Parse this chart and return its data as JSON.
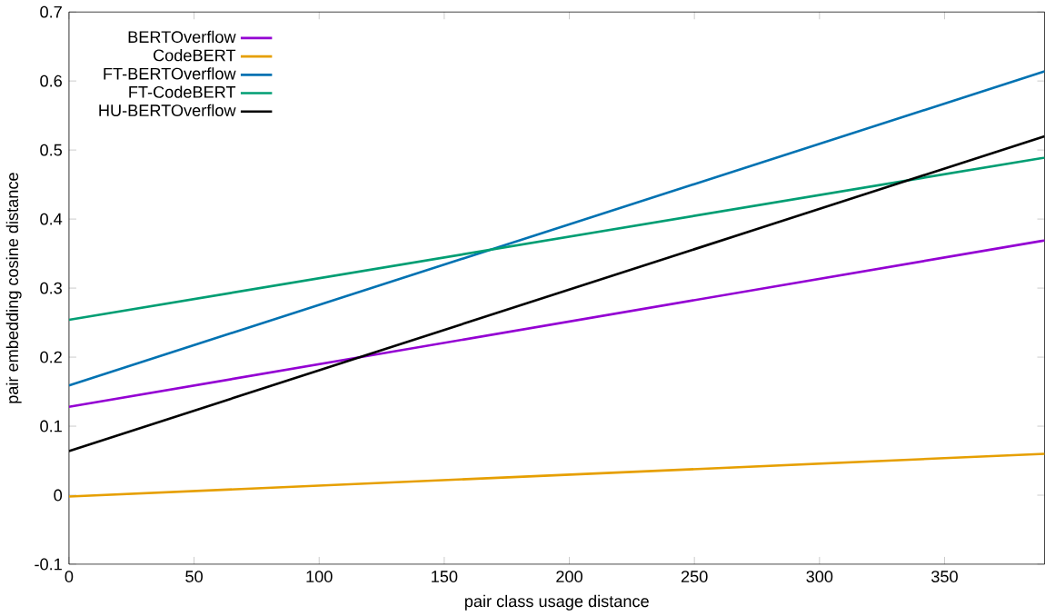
{
  "chart_data": {
    "type": "line",
    "xlabel": "pair class usage distance",
    "ylabel": "pair embedding cosine distance",
    "x": [
      0,
      390
    ],
    "series": [
      {
        "name": "BERTOverflow",
        "color": "#9400d3",
        "values": [
          0.128,
          0.369
        ]
      },
      {
        "name": "CodeBERT",
        "color": "#e69f00",
        "values": [
          -0.002,
          0.06
        ]
      },
      {
        "name": "FT-BERTOverflow",
        "color": "#0072b2",
        "values": [
          0.159,
          0.614
        ]
      },
      {
        "name": "FT-CodeBERT",
        "color": "#009e73",
        "values": [
          0.254,
          0.489
        ]
      },
      {
        "name": "HU-BERTOverflow",
        "color": "#000000",
        "values": [
          0.064,
          0.52
        ]
      }
    ],
    "xlim": [
      0,
      390
    ],
    "ylim": [
      -0.1,
      0.7
    ],
    "xticks": [
      0,
      50,
      100,
      150,
      200,
      250,
      300,
      350
    ],
    "yticks": [
      -0.1,
      0,
      0.1,
      0.2,
      0.3,
      0.4,
      0.5,
      0.6,
      0.7
    ],
    "legend": "top left",
    "marker": "none",
    "line_style": "solid",
    "grid": false
  }
}
